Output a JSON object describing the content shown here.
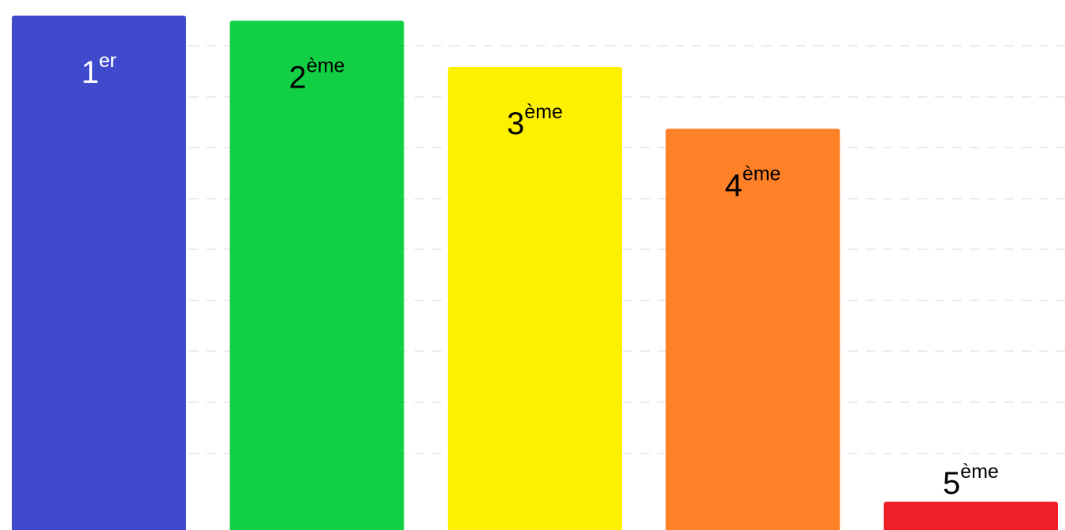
{
  "chart_data": {
    "type": "bar",
    "categories": [
      "1",
      "2",
      "3",
      "4",
      "5"
    ],
    "values": [
      100,
      99,
      90,
      78,
      5.5
    ],
    "ylim": [
      0,
      101.5
    ],
    "grid": true,
    "labels": [
      {
        "base": "1",
        "sup": "er"
      },
      {
        "base": "2",
        "sup": "ème"
      },
      {
        "base": "3",
        "sup": "ème"
      },
      {
        "base": "4",
        "sup": "ème"
      },
      {
        "base": "5",
        "sup": "ème"
      }
    ],
    "colors": [
      "#3f4acd",
      "#12d044",
      "#fdf000",
      "#fe8128",
      "#ee1f27"
    ],
    "label_colors": [
      "#ffffff",
      "#000000",
      "#000000",
      "#000000",
      "#000000"
    ],
    "label_position": [
      "inside",
      "inside",
      "inside",
      "inside",
      "above"
    ]
  }
}
